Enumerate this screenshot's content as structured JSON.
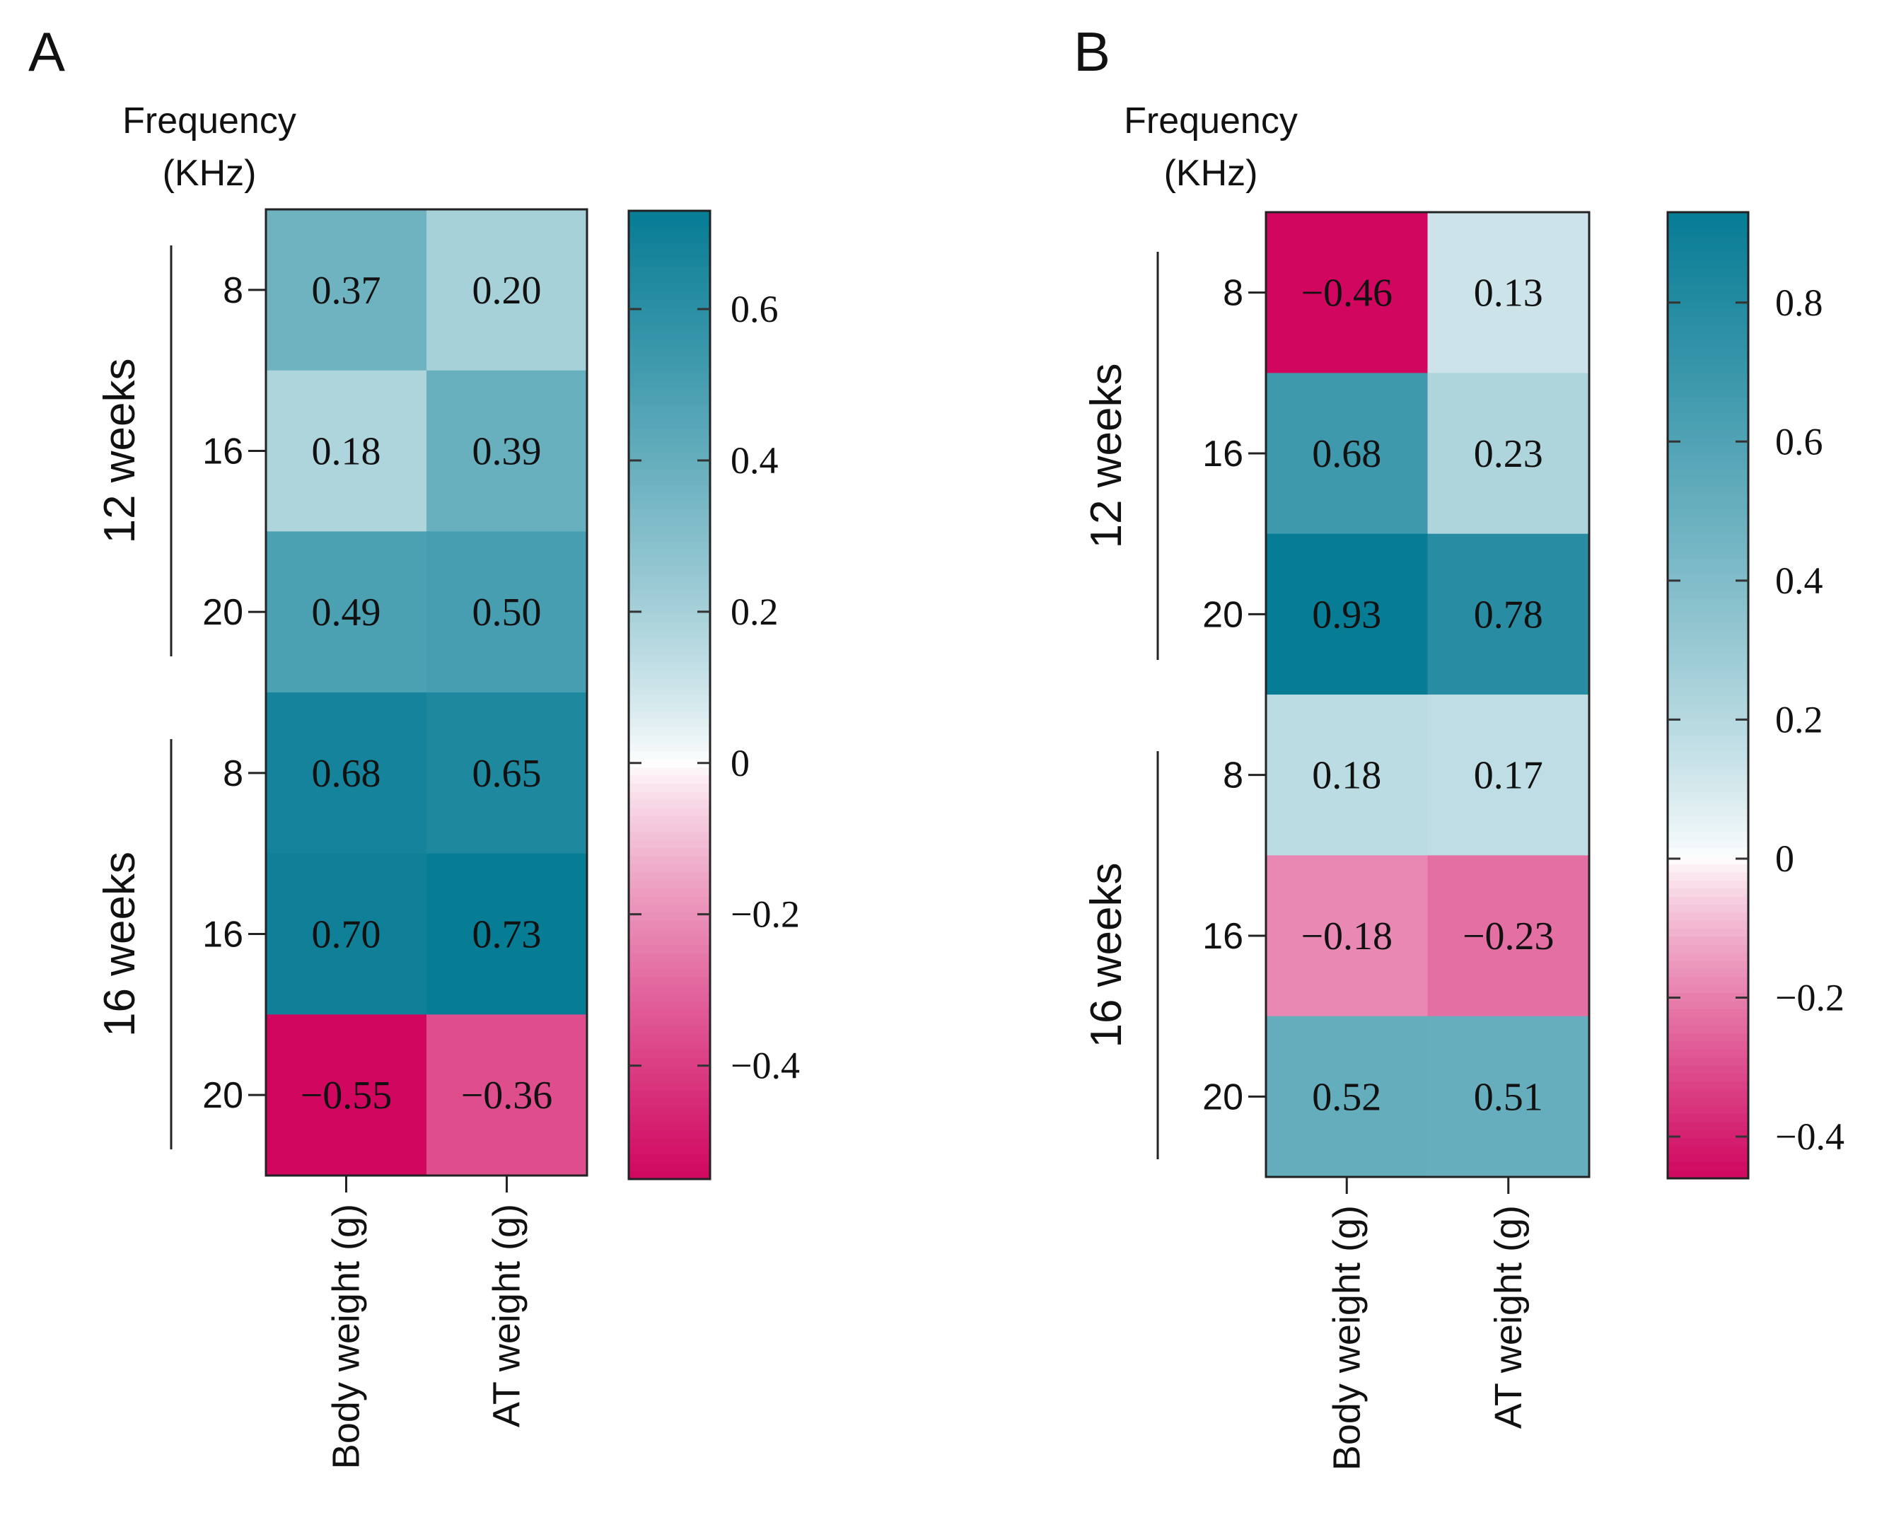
{
  "chart_data": [
    {
      "type": "heatmap",
      "panel_label": "A",
      "ylabel_line1": "Frequency",
      "ylabel_line2": "(KHz)",
      "columns": [
        "Body weight (g)",
        "AT weight (g)"
      ],
      "groups": [
        {
          "name": "12 weeks",
          "rows": [
            "8",
            "16",
            "20"
          ]
        },
        {
          "name": "16 weeks",
          "rows": [
            "8",
            "16",
            "20"
          ]
        }
      ],
      "values": [
        [
          0.37,
          0.2
        ],
        [
          0.18,
          0.39
        ],
        [
          0.49,
          0.5
        ],
        [
          0.68,
          0.65
        ],
        [
          0.7,
          0.73
        ],
        [
          -0.55,
          -0.36
        ]
      ],
      "labels": [
        [
          "0.37",
          "0.20"
        ],
        [
          "0.18",
          "0.39"
        ],
        [
          "0.49",
          "0.50"
        ],
        [
          "0.68",
          "0.65"
        ],
        [
          "0.70",
          "0.73"
        ],
        [
          "−0.55",
          "−0.36"
        ]
      ],
      "colorbar": {
        "range": [
          -0.55,
          0.73
        ],
        "ticks": [
          0.6,
          0.4,
          0.2,
          0,
          -0.2,
          -0.4
        ],
        "tick_labels": [
          "0.6",
          "0.4",
          "0.2",
          "0",
          "−0.2",
          "−0.4"
        ]
      }
    },
    {
      "type": "heatmap",
      "panel_label": "B",
      "ylabel_line1": "Frequency",
      "ylabel_line2": "(KHz)",
      "columns": [
        "Body weight (g)",
        "AT weight (g)"
      ],
      "groups": [
        {
          "name": "12 weeks",
          "rows": [
            "8",
            "16",
            "20"
          ]
        },
        {
          "name": "16 weeks",
          "rows": [
            "8",
            "16",
            "20"
          ]
        }
      ],
      "values": [
        [
          -0.46,
          0.13
        ],
        [
          0.68,
          0.23
        ],
        [
          0.93,
          0.78
        ],
        [
          0.18,
          0.17
        ],
        [
          -0.18,
          -0.23
        ],
        [
          0.52,
          0.51
        ]
      ],
      "labels": [
        [
          "−0.46",
          "0.13"
        ],
        [
          "0.68",
          "0.23"
        ],
        [
          "0.93",
          "0.78"
        ],
        [
          "0.18",
          "0.17"
        ],
        [
          "−0.18",
          "−0.23"
        ],
        [
          "0.52",
          "0.51"
        ]
      ],
      "colorbar": {
        "range": [
          -0.46,
          0.93
        ],
        "ticks": [
          0.8,
          0.6,
          0.4,
          0.2,
          0,
          -0.2,
          -0.4
        ],
        "tick_labels": [
          "0.8",
          "0.6",
          "0.4",
          "0.2",
          "0",
          "−0.2",
          "−0.4"
        ]
      }
    }
  ],
  "colors": {
    "negative": "#d0065f",
    "zero": "#ffffff",
    "positive": "#077c95"
  }
}
